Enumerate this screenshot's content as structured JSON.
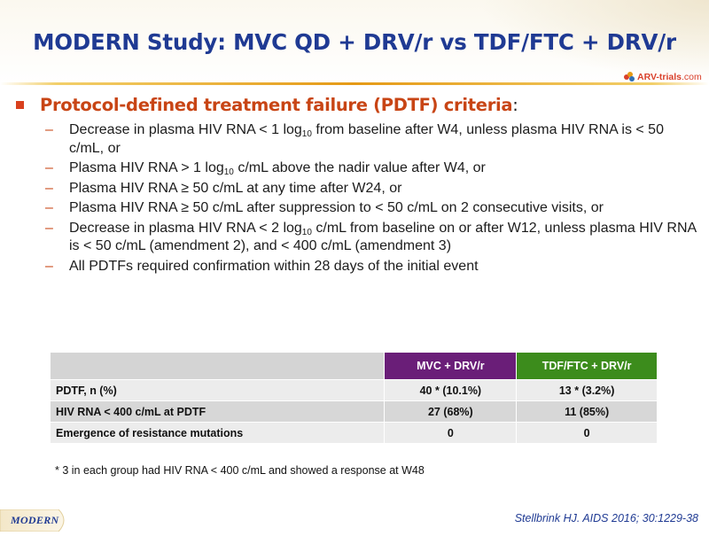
{
  "title": "MODERN Study: MVC QD + DRV/r vs TDF/FTC + DRV/r",
  "logo": {
    "brand": "ARV-trials",
    "domain": ".com"
  },
  "main_bullet": {
    "text": "Protocol-defined treatment failure (PDTF) criteria",
    "colon": ":"
  },
  "sub_bullets": [
    {
      "pre": "Decrease in plasma HIV RNA < 1 log",
      "sub": "10",
      "post": " from baseline after W4, unless plasma HIV RNA is < 50 c/mL, or"
    },
    {
      "pre": "Plasma HIV RNA > 1 log",
      "sub": "10",
      "post": " c/mL above the nadir value after W4, or"
    },
    {
      "pre": "Plasma HIV RNA ≥ 50 c/mL at any time after W24, or",
      "sub": "",
      "post": ""
    },
    {
      "pre": "Plasma HIV RNA ≥ 50 c/mL after suppression to < 50 c/mL on 2 consecutive visits, or",
      "sub": "",
      "post": ""
    },
    {
      "pre": "Decrease in plasma HIV RNA < 2 log",
      "sub": "10",
      "post": " c/mL from baseline on or after W12, unless plasma HIV RNA is < 50 c/mL (amendment 2), and < 400 c/mL (amendment 3)"
    },
    {
      "pre": "All PDTFs required confirmation within 28 days of the initial event",
      "sub": "",
      "post": ""
    }
  ],
  "table": {
    "headers": [
      "",
      "MVC + DRV/r",
      "TDF/FTC + DRV/r"
    ],
    "rows": [
      [
        "PDTF, n (%)",
        "40 * (10.1%)",
        "13 * (3.2%)"
      ],
      [
        "HIV RNA < 400 c/mL at PDTF",
        "27 (68%)",
        "11 (85%)"
      ],
      [
        "Emergence of resistance mutations",
        "0",
        "0"
      ]
    ],
    "colors": {
      "mvc_header": "#6a1e78",
      "tdf_header": "#3c8c1c"
    }
  },
  "footnote": "* 3 in each group had HIV RNA < 400 c/mL and showed a response at W48",
  "bottom_tag": "MODERN",
  "reference": "Stellbrink HJ. AIDS 2016; 30:1229-38",
  "colors": {
    "title": "#1f3a93",
    "accent": "#c84515",
    "rule": "#e59a16"
  }
}
